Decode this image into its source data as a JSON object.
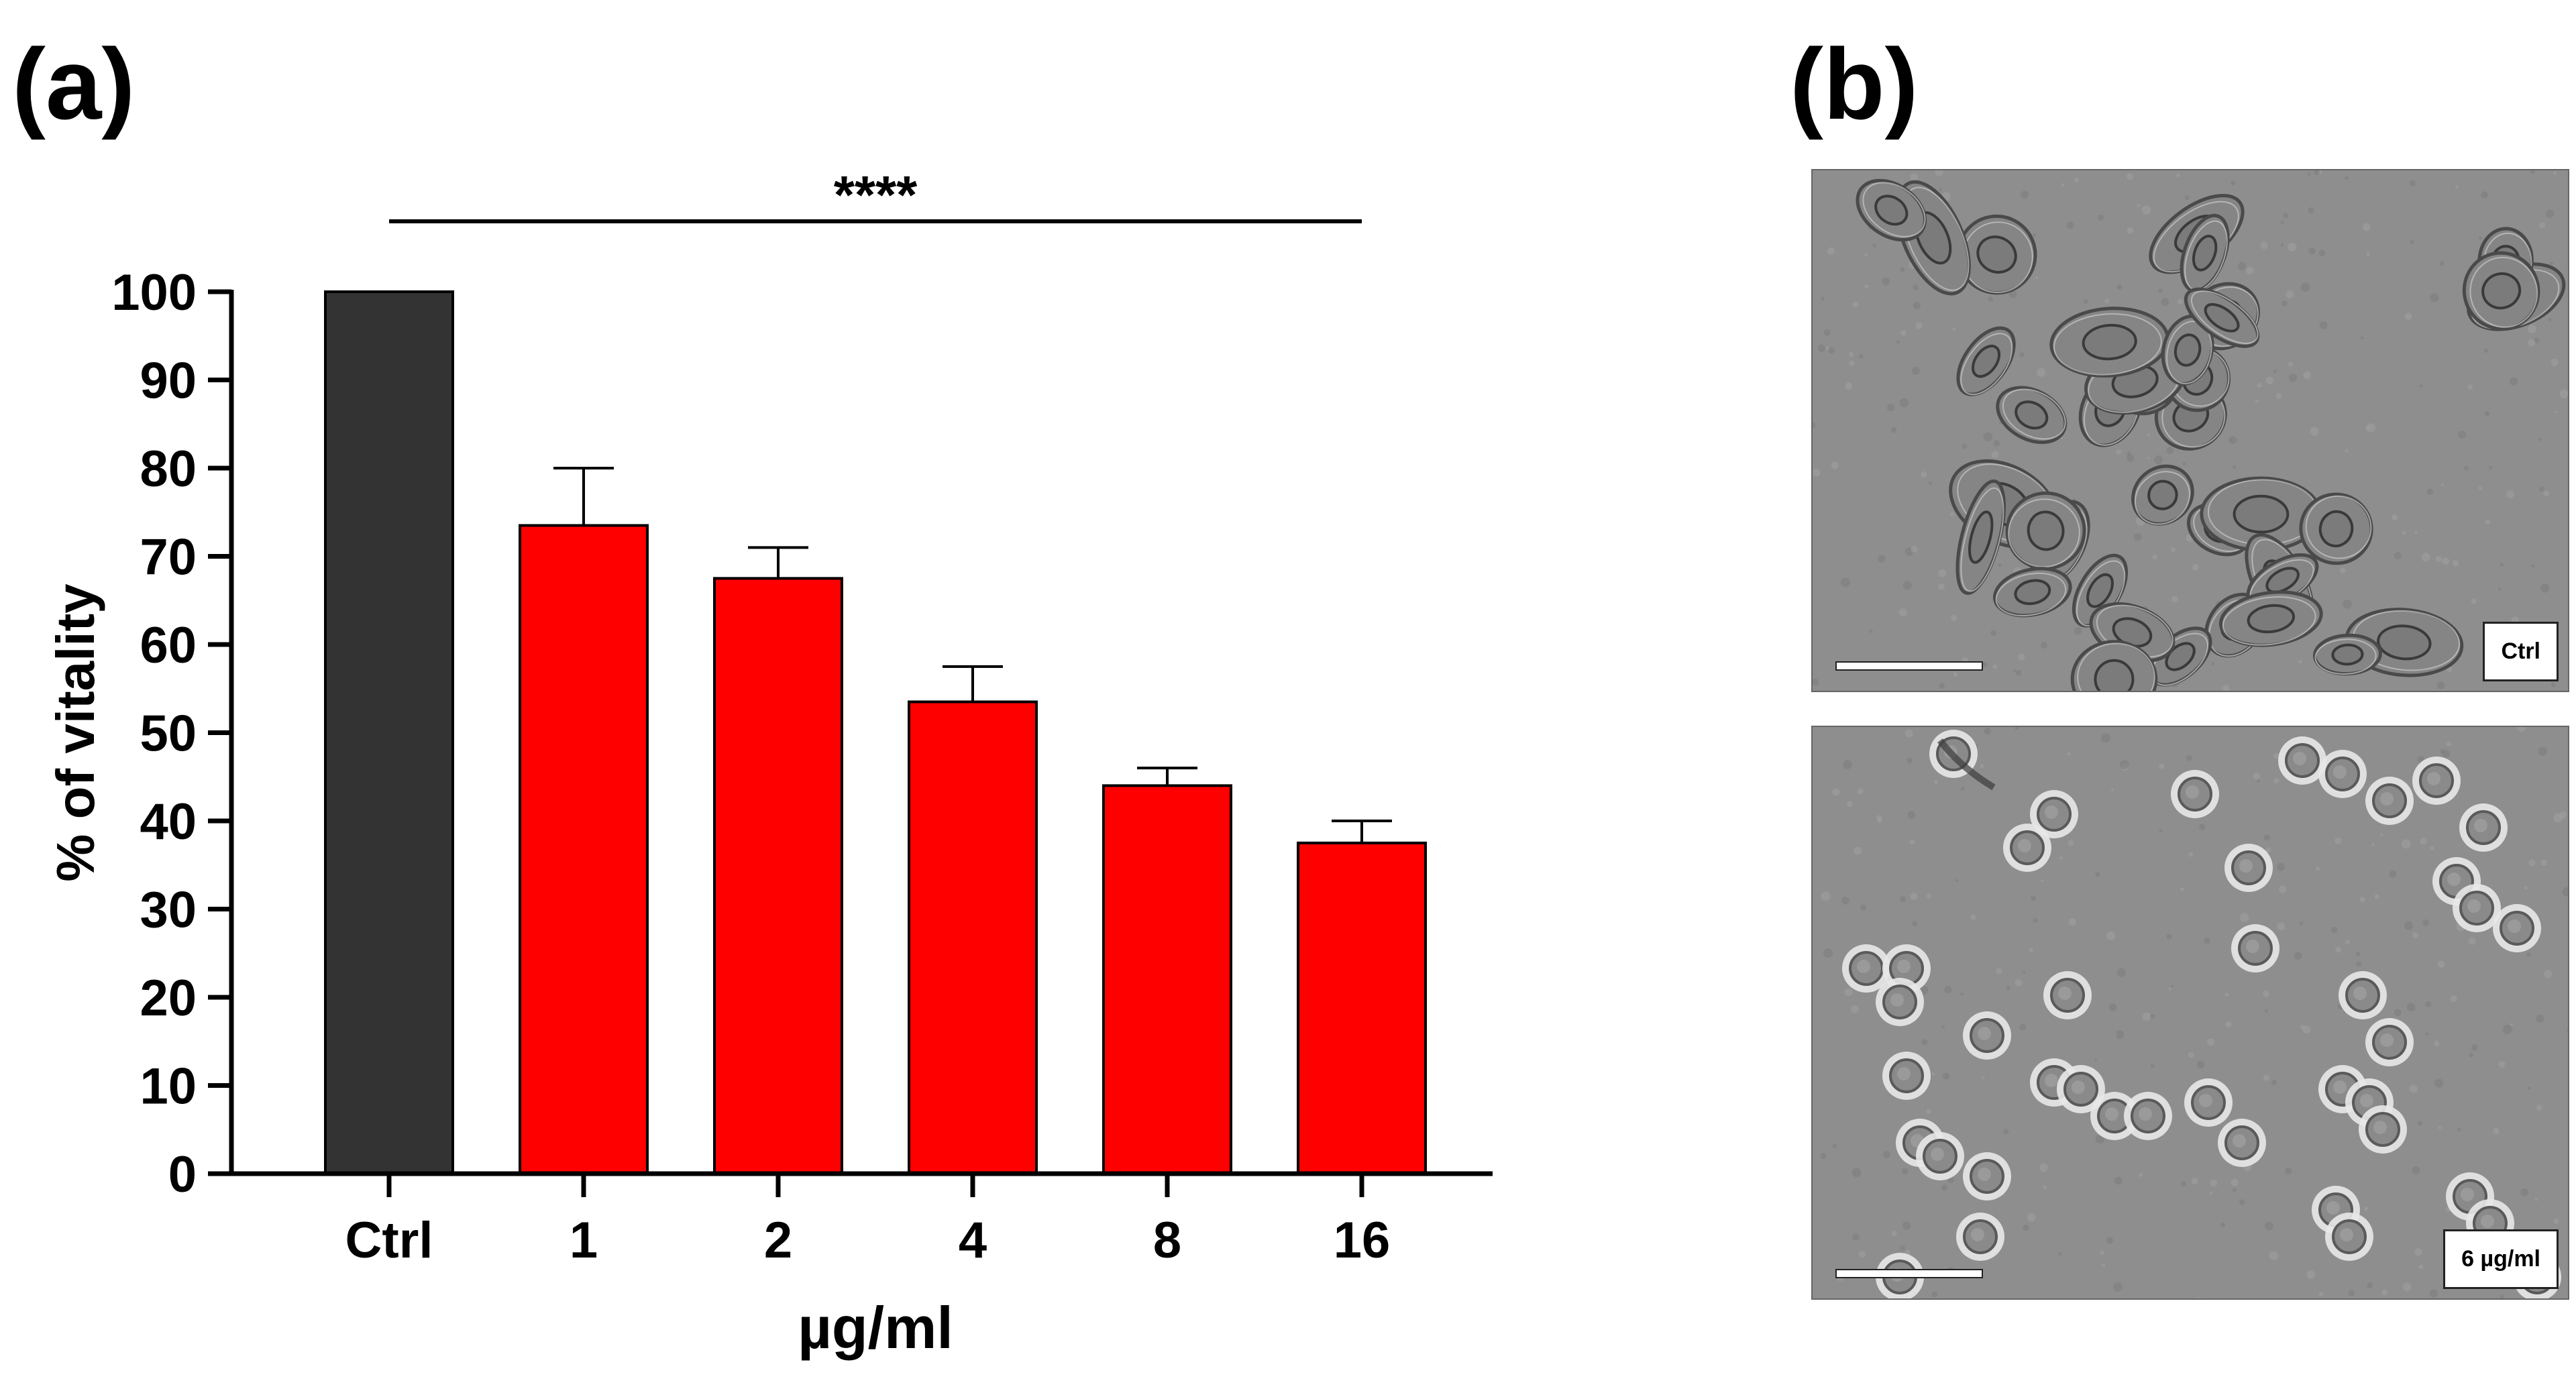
{
  "panels": {
    "a_label": "(a)",
    "b_label": "(b)"
  },
  "chart_data": {
    "type": "bar",
    "categories": [
      "Ctrl",
      "1",
      "2",
      "4",
      "8",
      "16"
    ],
    "values": [
      100,
      73.5,
      67.5,
      53.5,
      44,
      37.5
    ],
    "errors": [
      0,
      6.5,
      3.5,
      4,
      2,
      2.5
    ],
    "bar_colors": [
      "#333333",
      "#ff0000",
      "#ff0000",
      "#ff0000",
      "#ff0000",
      "#ff0000"
    ],
    "ylabel": "% of vitality",
    "xlabel": "µg/ml",
    "ylim": [
      0,
      100
    ],
    "yticks": [
      0,
      10,
      20,
      30,
      40,
      50,
      60,
      70,
      80,
      90,
      100
    ],
    "significance": {
      "text": "****",
      "from": "Ctrl",
      "to": "16"
    },
    "grid": false,
    "legend": "none"
  },
  "micrographs": {
    "top_tag": "Ctrl",
    "bottom_tag": "6 µg/ml"
  }
}
